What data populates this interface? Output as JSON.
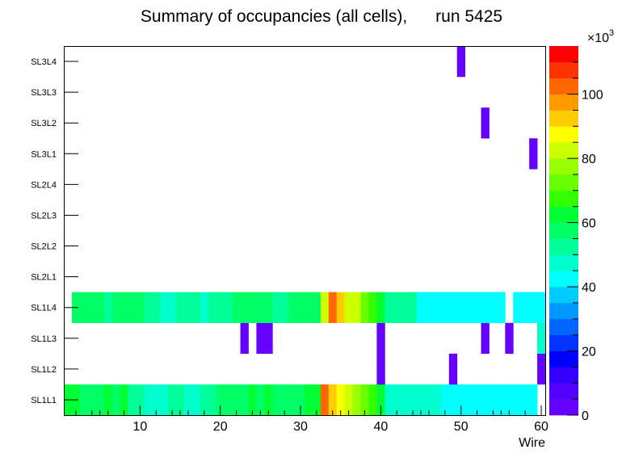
{
  "chart_data": {
    "type": "heatmap",
    "title": "Summary of occupancies (all cells),      run 5425",
    "xlabel": "Wire",
    "ylabel": "",
    "xlim": [
      0.5,
      60.5
    ],
    "x_ticks": [
      10,
      20,
      30,
      40,
      50,
      60
    ],
    "y_categories": [
      "SL1L1",
      "SL1L2",
      "SL1L3",
      "SL1L4",
      "SL2L1",
      "SL2L2",
      "SL2L3",
      "SL2L4",
      "SL3L1",
      "SL3L2",
      "SL3L3",
      "SL3L4"
    ],
    "zlim": [
      0,
      115000
    ],
    "z_ticks": [
      0,
      20,
      40,
      60,
      80,
      100
    ],
    "z_multiplier": "×10",
    "z_exponent": "3",
    "palette": [
      "#6600ff",
      "#5200ff",
      "#3300ff",
      "#0000ff",
      "#0033ff",
      "#0066ff",
      "#0099ff",
      "#00ccff",
      "#00ffff",
      "#00ffcc",
      "#00ff99",
      "#00ff66",
      "#00ff33",
      "#33ff00",
      "#66ff00",
      "#99ff00",
      "#ccff00",
      "#ffff00",
      "#ffcc00",
      "#ff9900",
      "#ff6600",
      "#ff3300",
      "#ff0000"
    ],
    "series": [
      {
        "name": "SL1L1",
        "values": [
          62,
          62,
          58,
          58,
          56,
          60,
          56,
          60,
          52,
          52,
          48,
          48,
          48,
          52,
          52,
          48,
          48,
          52,
          52,
          56,
          56,
          56,
          56,
          60,
          56,
          60,
          56,
          56,
          56,
          56,
          60,
          62,
          100,
          94,
          88,
          80,
          76,
          70,
          66,
          60,
          48,
          48,
          48,
          48,
          48,
          48,
          48,
          44,
          44,
          44,
          44,
          44,
          44,
          44,
          44,
          44,
          40,
          40,
          40,
          0
        ]
      },
      {
        "name": "SL1L2",
        "values": [
          0,
          0,
          0,
          0,
          0,
          0,
          0,
          0,
          0,
          0,
          0,
          0,
          0,
          0,
          0,
          0,
          0,
          0,
          0,
          0,
          0,
          0,
          0,
          0,
          0,
          0,
          0,
          0,
          0,
          0,
          0,
          0,
          0,
          0,
          0,
          0,
          0,
          0,
          0,
          2,
          0,
          0,
          0,
          0,
          0,
          0,
          0,
          0,
          2,
          0,
          0,
          0,
          0,
          0,
          0,
          0,
          0,
          0,
          0,
          2
        ]
      },
      {
        "name": "SL1L3",
        "values": [
          0,
          0,
          0,
          0,
          0,
          0,
          0,
          0,
          0,
          0,
          0,
          0,
          0,
          0,
          0,
          0,
          0,
          0,
          0,
          0,
          0,
          0,
          2,
          0,
          2,
          2,
          0,
          0,
          0,
          0,
          0,
          0,
          0,
          0,
          0,
          0,
          0,
          0,
          0,
          2,
          0,
          0,
          0,
          0,
          0,
          0,
          0,
          0,
          0,
          0,
          0,
          0,
          2,
          0,
          0,
          2,
          0,
          0,
          0,
          46
        ]
      },
      {
        "name": "SL1L4",
        "values": [
          0,
          56,
          56,
          56,
          56,
          52,
          56,
          56,
          56,
          56,
          52,
          52,
          48,
          48,
          52,
          52,
          52,
          48,
          52,
          52,
          52,
          56,
          56,
          56,
          56,
          56,
          52,
          52,
          56,
          56,
          56,
          56,
          80,
          100,
          94,
          84,
          80,
          72,
          66,
          60,
          52,
          52,
          52,
          52,
          44,
          44,
          44,
          44,
          44,
          44,
          44,
          44,
          40,
          40,
          40,
          0,
          40,
          40,
          40,
          40
        ]
      },
      {
        "name": "SL2L1",
        "values": [
          0,
          0,
          0,
          0,
          0,
          0,
          0,
          0,
          0,
          0,
          0,
          0,
          0,
          0,
          0,
          0,
          0,
          0,
          0,
          0,
          0,
          0,
          0,
          0,
          0,
          0,
          0,
          0,
          0,
          0,
          0,
          0,
          0,
          0,
          0,
          0,
          0,
          0,
          0,
          0,
          0,
          0,
          0,
          0,
          0,
          0,
          0,
          0,
          0,
          0,
          0,
          0,
          0,
          0,
          0,
          0,
          0,
          0,
          0,
          0
        ]
      },
      {
        "name": "SL2L2",
        "values": [
          0,
          0,
          0,
          0,
          0,
          0,
          0,
          0,
          0,
          0,
          0,
          0,
          0,
          0,
          0,
          0,
          0,
          0,
          0,
          0,
          0,
          0,
          0,
          0,
          0,
          0,
          0,
          0,
          0,
          0,
          0,
          0,
          0,
          0,
          0,
          0,
          0,
          0,
          0,
          0,
          0,
          0,
          0,
          0,
          0,
          0,
          0,
          0,
          0,
          0,
          0,
          0,
          0,
          0,
          0,
          0,
          0,
          0,
          0,
          0
        ]
      },
      {
        "name": "SL2L3",
        "values": [
          0,
          0,
          0,
          0,
          0,
          0,
          0,
          0,
          0,
          0,
          0,
          0,
          0,
          0,
          0,
          0,
          0,
          0,
          0,
          0,
          0,
          0,
          0,
          0,
          0,
          0,
          0,
          0,
          0,
          0,
          0,
          0,
          0,
          0,
          0,
          0,
          0,
          0,
          0,
          0,
          0,
          0,
          0,
          0,
          0,
          0,
          0,
          0,
          0,
          0,
          0,
          0,
          0,
          0,
          0,
          0,
          0,
          0,
          0,
          0
        ]
      },
      {
        "name": "SL2L4",
        "values": [
          0,
          0,
          0,
          0,
          0,
          0,
          0,
          0,
          0,
          0,
          0,
          0,
          0,
          0,
          0,
          0,
          0,
          0,
          0,
          0,
          0,
          0,
          0,
          0,
          0,
          0,
          0,
          0,
          0,
          0,
          0,
          0,
          0,
          0,
          0,
          0,
          0,
          0,
          0,
          0,
          0,
          0,
          0,
          0,
          0,
          0,
          0,
          0,
          0,
          0,
          0,
          0,
          0,
          0,
          0,
          0,
          0,
          0,
          0,
          0
        ]
      },
      {
        "name": "SL3L1",
        "values": [
          0,
          0,
          0,
          0,
          0,
          0,
          0,
          0,
          0,
          0,
          0,
          0,
          0,
          0,
          0,
          0,
          0,
          0,
          0,
          0,
          0,
          0,
          0,
          0,
          0,
          0,
          0,
          0,
          0,
          0,
          0,
          0,
          0,
          0,
          0,
          0,
          0,
          0,
          0,
          0,
          0,
          0,
          0,
          0,
          0,
          0,
          0,
          0,
          0,
          0,
          0,
          0,
          0,
          0,
          0,
          0,
          0,
          0,
          2,
          0
        ]
      },
      {
        "name": "SL3L2",
        "values": [
          0,
          0,
          0,
          0,
          0,
          0,
          0,
          0,
          0,
          0,
          0,
          0,
          0,
          0,
          0,
          0,
          0,
          0,
          0,
          0,
          0,
          0,
          0,
          0,
          0,
          0,
          0,
          0,
          0,
          0,
          0,
          0,
          0,
          0,
          0,
          0,
          0,
          0,
          0,
          0,
          0,
          0,
          0,
          0,
          0,
          0,
          0,
          0,
          0,
          0,
          0,
          0,
          2,
          0,
          0,
          0,
          0,
          0,
          0,
          0
        ]
      },
      {
        "name": "SL3L3",
        "values": [
          0,
          0,
          0,
          0,
          0,
          0,
          0,
          0,
          0,
          0,
          0,
          0,
          0,
          0,
          0,
          0,
          0,
          0,
          0,
          0,
          0,
          0,
          0,
          0,
          0,
          0,
          0,
          0,
          0,
          0,
          0,
          0,
          0,
          0,
          0,
          0,
          0,
          0,
          0,
          0,
          0,
          0,
          0,
          0,
          0,
          0,
          0,
          0,
          0,
          0,
          0,
          0,
          0,
          0,
          0,
          0,
          0,
          0,
          0,
          0
        ]
      },
      {
        "name": "SL3L4",
        "values": [
          0,
          0,
          0,
          0,
          0,
          0,
          0,
          0,
          0,
          0,
          0,
          0,
          0,
          0,
          0,
          0,
          0,
          0,
          0,
          0,
          0,
          0,
          0,
          0,
          0,
          0,
          0,
          0,
          0,
          0,
          0,
          0,
          0,
          0,
          0,
          0,
          0,
          0,
          0,
          0,
          0,
          0,
          0,
          0,
          0,
          0,
          0,
          0,
          0,
          2,
          0,
          0,
          0,
          0,
          0,
          0,
          0,
          0,
          0,
          0
        ]
      }
    ],
    "values_unit_note": "cell values in thousands of hits"
  }
}
